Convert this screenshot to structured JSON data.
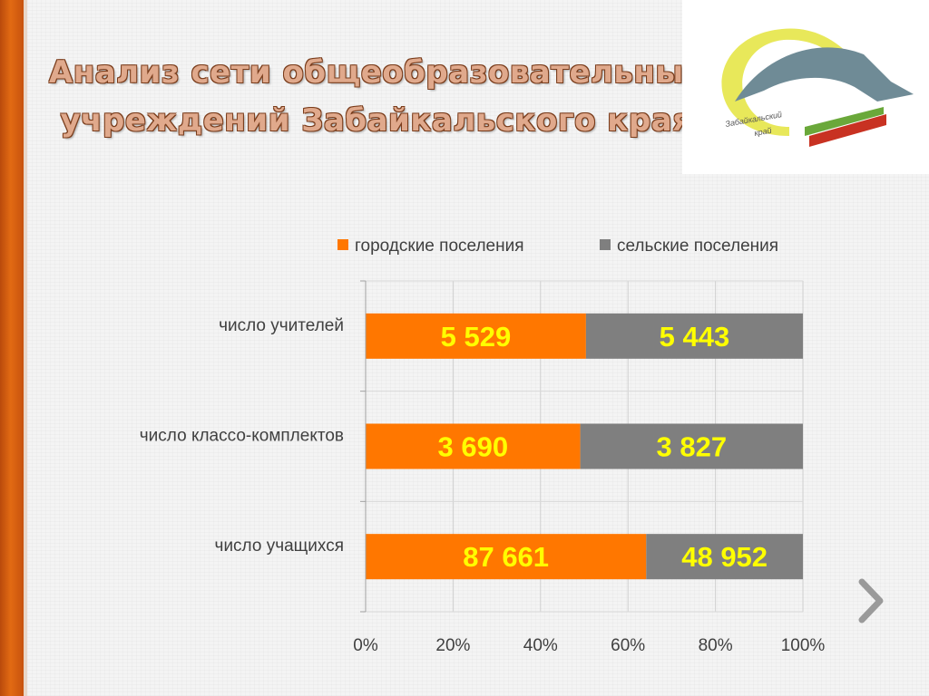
{
  "slide": {
    "title_line1": "Анализ сети общеобразовательных",
    "title_line2": "учреждений Забайкальского края"
  },
  "logo": {
    "text_line1": "Забайкальский",
    "text_line2": "край"
  },
  "colors": {
    "urban": "#ff7700",
    "rural": "#7f7f7f",
    "data_label": "#ffff00",
    "accent_bar": "#e26a13"
  },
  "nav": {
    "next_icon": "chevron-right-icon"
  },
  "chart_data": {
    "type": "bar",
    "orientation": "horizontal",
    "stacked": "percent",
    "categories": [
      "число учителей",
      "число классо-комплектов",
      "число учащихся"
    ],
    "series": [
      {
        "name": "городские поселения",
        "values": [
          5529,
          3690,
          87661
        ],
        "labels": [
          "5 529",
          "3 690",
          "87 661"
        ]
      },
      {
        "name": "сельские поселения",
        "values": [
          5443,
          3827,
          48952
        ],
        "labels": [
          "5 443",
          "3 827",
          "48 952"
        ]
      }
    ],
    "xlim": [
      0,
      100
    ],
    "xticks": [
      "0%",
      "20%",
      "40%",
      "60%",
      "80%",
      "100%"
    ],
    "grid": true,
    "legend": "top"
  }
}
